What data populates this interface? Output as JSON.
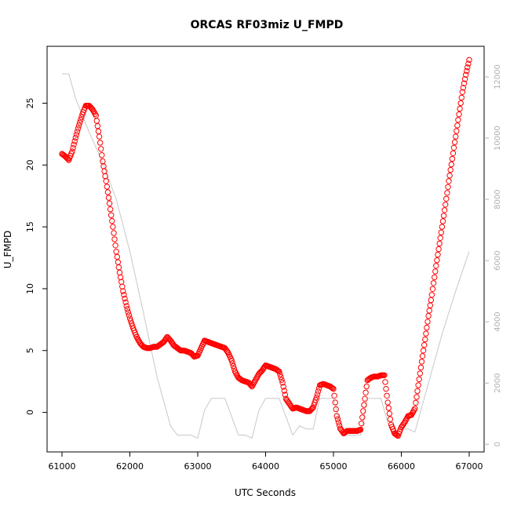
{
  "chart_data": {
    "type": "scatter",
    "title": "ORCAS RF03miz U_FMPD",
    "xlabel": "UTC Seconds",
    "ylabel": "U_FMPD",
    "xlim": [
      61000,
      67000
    ],
    "ylim": [
      -3.2,
      29.6
    ],
    "xticks": [
      61000,
      62000,
      63000,
      64000,
      65000,
      66000,
      67000
    ],
    "yticks": [
      0,
      5,
      10,
      15,
      20,
      25
    ],
    "y2lim": [
      -250,
      13000
    ],
    "y2ticks": [
      0,
      2000,
      4000,
      6000,
      8000,
      10000,
      12000
    ],
    "grid": false,
    "series": [
      {
        "name": "",
        "kind": "points",
        "color": "#ff0000",
        "axis": "left",
        "points": [
          [
            61000,
            20.9
          ],
          [
            61050,
            20.7
          ],
          [
            61100,
            20.4
          ],
          [
            61150,
            21.1
          ],
          [
            61200,
            22.2
          ],
          [
            61250,
            23.2
          ],
          [
            61300,
            24.1
          ],
          [
            61350,
            24.8
          ],
          [
            61400,
            24.8
          ],
          [
            61450,
            24.5
          ],
          [
            61500,
            24.0
          ],
          [
            61550,
            22.3
          ],
          [
            61600,
            20.3
          ],
          [
            61650,
            18.7
          ],
          [
            61700,
            16.9
          ],
          [
            61750,
            15.0
          ],
          [
            61800,
            13.0
          ],
          [
            61850,
            11.3
          ],
          [
            61900,
            9.8
          ],
          [
            61950,
            8.6
          ],
          [
            62000,
            7.6
          ],
          [
            62050,
            6.8
          ],
          [
            62100,
            6.1
          ],
          [
            62150,
            5.6
          ],
          [
            62200,
            5.3
          ],
          [
            62250,
            5.2
          ],
          [
            62300,
            5.2
          ],
          [
            62350,
            5.3
          ],
          [
            62400,
            5.3
          ],
          [
            62450,
            5.5
          ],
          [
            62500,
            5.7
          ],
          [
            62550,
            6.1
          ],
          [
            62600,
            5.8
          ],
          [
            62650,
            5.4
          ],
          [
            62700,
            5.2
          ],
          [
            62750,
            5.0
          ],
          [
            62800,
            5.0
          ],
          [
            62850,
            4.9
          ],
          [
            62900,
            4.8
          ],
          [
            62950,
            4.5
          ],
          [
            63000,
            4.6
          ],
          [
            63050,
            5.2
          ],
          [
            63100,
            5.8
          ],
          [
            63150,
            5.7
          ],
          [
            63200,
            5.6
          ],
          [
            63250,
            5.5
          ],
          [
            63300,
            5.4
          ],
          [
            63350,
            5.3
          ],
          [
            63400,
            5.2
          ],
          [
            63450,
            4.8
          ],
          [
            63500,
            4.2
          ],
          [
            63550,
            3.3
          ],
          [
            63600,
            2.8
          ],
          [
            63650,
            2.6
          ],
          [
            63700,
            2.5
          ],
          [
            63750,
            2.4
          ],
          [
            63800,
            2.1
          ],
          [
            63850,
            2.6
          ],
          [
            63900,
            3.1
          ],
          [
            63950,
            3.4
          ],
          [
            64000,
            3.8
          ],
          [
            64050,
            3.7
          ],
          [
            64100,
            3.6
          ],
          [
            64150,
            3.5
          ],
          [
            64200,
            3.3
          ],
          [
            64250,
            2.4
          ],
          [
            64300,
            1.1
          ],
          [
            64350,
            0.7
          ],
          [
            64400,
            0.3
          ],
          [
            64450,
            0.4
          ],
          [
            64500,
            0.3
          ],
          [
            64550,
            0.2
          ],
          [
            64600,
            0.1
          ],
          [
            64650,
            0.1
          ],
          [
            64700,
            0.4
          ],
          [
            64750,
            1.2
          ],
          [
            64800,
            2.2
          ],
          [
            64850,
            2.3
          ],
          [
            64900,
            2.2
          ],
          [
            64950,
            2.1
          ],
          [
            65000,
            1.9
          ],
          [
            65050,
            -0.3
          ],
          [
            65100,
            -1.3
          ],
          [
            65150,
            -1.7
          ],
          [
            65200,
            -1.5
          ],
          [
            65250,
            -1.5
          ],
          [
            65300,
            -1.5
          ],
          [
            65350,
            -1.5
          ],
          [
            65400,
            -1.4
          ],
          [
            65450,
            0.6
          ],
          [
            65500,
            2.6
          ],
          [
            65550,
            2.8
          ],
          [
            65600,
            2.9
          ],
          [
            65650,
            2.9
          ],
          [
            65700,
            3.0
          ],
          [
            65750,
            3.0
          ],
          [
            65800,
            0.8
          ],
          [
            65850,
            -1.0
          ],
          [
            65900,
            -1.7
          ],
          [
            65950,
            -1.9
          ],
          [
            66000,
            -1.2
          ],
          [
            66050,
            -0.8
          ],
          [
            66100,
            -0.3
          ],
          [
            66150,
            -0.2
          ],
          [
            66200,
            0.3
          ],
          [
            66250,
            2.2
          ],
          [
            66300,
            4.1
          ],
          [
            66350,
            5.9
          ],
          [
            66400,
            7.8
          ],
          [
            66450,
            9.5
          ],
          [
            66500,
            11.4
          ],
          [
            66550,
            13.2
          ],
          [
            66600,
            15.0
          ],
          [
            66650,
            16.8
          ],
          [
            66700,
            18.7
          ],
          [
            66750,
            20.5
          ],
          [
            66800,
            22.3
          ],
          [
            66850,
            24.1
          ],
          [
            66900,
            25.9
          ],
          [
            66950,
            27.3
          ],
          [
            67000,
            28.5
          ]
        ]
      },
      {
        "name": "",
        "kind": "line",
        "color": "#c8c8c8",
        "axis": "right",
        "points": [
          [
            61000,
            12100
          ],
          [
            61100,
            12100
          ],
          [
            61200,
            11300
          ],
          [
            61400,
            10200
          ],
          [
            61600,
            9200
          ],
          [
            61800,
            8000
          ],
          [
            62000,
            6300
          ],
          [
            62200,
            4300
          ],
          [
            62400,
            2200
          ],
          [
            62600,
            600
          ],
          [
            62700,
            300
          ],
          [
            62800,
            300
          ],
          [
            62900,
            300
          ],
          [
            63000,
            200
          ],
          [
            63100,
            1100
          ],
          [
            63200,
            1500
          ],
          [
            63300,
            1500
          ],
          [
            63400,
            1500
          ],
          [
            63500,
            900
          ],
          [
            63600,
            300
          ],
          [
            63700,
            300
          ],
          [
            63800,
            200
          ],
          [
            63900,
            1100
          ],
          [
            64000,
            1500
          ],
          [
            64100,
            1500
          ],
          [
            64200,
            1500
          ],
          [
            64300,
            900
          ],
          [
            64400,
            300
          ],
          [
            64500,
            600
          ],
          [
            64600,
            500
          ],
          [
            64700,
            500
          ],
          [
            64800,
            1500
          ],
          [
            64900,
            1500
          ],
          [
            65000,
            1500
          ],
          [
            65100,
            700
          ],
          [
            65200,
            300
          ],
          [
            65300,
            300
          ],
          [
            65400,
            300
          ],
          [
            65500,
            1500
          ],
          [
            65600,
            1500
          ],
          [
            65700,
            1500
          ],
          [
            65800,
            700
          ],
          [
            65900,
            300
          ],
          [
            66000,
            500
          ],
          [
            66100,
            500
          ],
          [
            66200,
            400
          ],
          [
            66400,
            2000
          ],
          [
            66600,
            3600
          ],
          [
            66800,
            5000
          ],
          [
            67000,
            6300
          ]
        ]
      }
    ]
  }
}
